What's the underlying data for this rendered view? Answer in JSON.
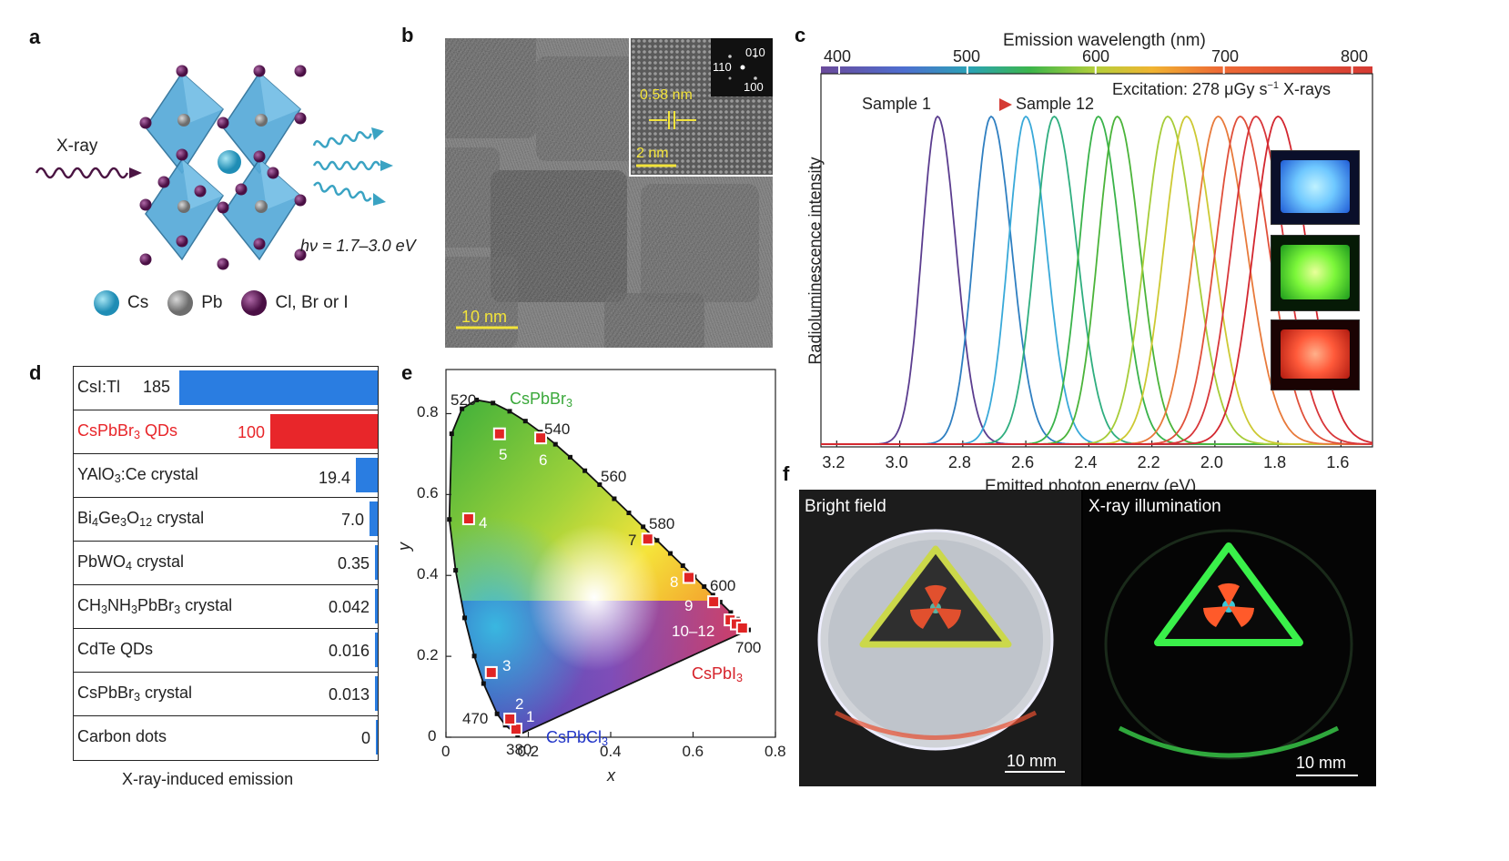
{
  "labels": {
    "a": "a",
    "b": "b",
    "c": "c",
    "d": "d",
    "e": "e",
    "f": "f"
  },
  "panel_a": {
    "xray": "X-ray",
    "hv": "hν = 1.7–3.0 eV",
    "legend": [
      {
        "name": "Cs",
        "color": "#3fa7d6"
      },
      {
        "name": "Pb",
        "color": "#8a8a8a"
      },
      {
        "name": "Cl, Br or I",
        "color": "#6b1a5e"
      }
    ]
  },
  "panel_b": {
    "scale_main": "10 nm",
    "lattice": "0.58 nm",
    "scale_inset": "2 nm",
    "fft": [
      "010",
      "110",
      "100"
    ]
  },
  "panel_c": {
    "top_label": "Emission wavelength (nm)",
    "top_ticks": [
      "400",
      "500",
      "600",
      "700",
      "800"
    ],
    "excitation": "Excitation: 278 μGy s",
    "excitation_sup": "−1",
    "excitation_tail": " X-rays",
    "sample_from": "Sample 1",
    "sample_to": "Sample 12",
    "ylabel": "Radioluminescence intensity",
    "xlabel": "Emitted photon energy (eV)",
    "xticks": [
      "3.2",
      "3.0",
      "2.8",
      "2.6",
      "2.4",
      "2.2",
      "2.0",
      "1.8",
      "1.6"
    ],
    "peak_colors": [
      "#5b3d8f",
      "#2f7fc1",
      "#39a9d9",
      "#2fae7f",
      "#39b34a",
      "#4bb43a",
      "#a6cc38",
      "#cdc933",
      "#e87a3b",
      "#e0503a",
      "#d8363a",
      "#d3272f"
    ]
  },
  "panel_d": {
    "title": "X-ray-induced emission",
    "rows": [
      {
        "name": "CsI:Tl",
        "value": "185",
        "v": 185,
        "color": "#2a7de1",
        "text_color": "#222"
      },
      {
        "name": "CsPbBr",
        "sub": "3",
        "tail": " QDs",
        "value": "100",
        "v": 100,
        "color": "#e8262a",
        "text_color": "#e8262a"
      },
      {
        "name": "YAlO",
        "sub": "3",
        "tail": ":Ce crystal",
        "value": "19.4",
        "v": 19.4,
        "color": "#2a7de1",
        "text_color": "#222"
      },
      {
        "name": "Bi",
        "sub": "4",
        "mid": "Ge",
        "sub2": "3",
        "mid2": "O",
        "sub3": "12",
        "tail": " crystal",
        "value": "7.0",
        "v": 7.0,
        "color": "#2a7de1",
        "text_color": "#222"
      },
      {
        "name": "PbWO",
        "sub": "4",
        "tail": " crystal",
        "value": "0.35",
        "v": 0.35,
        "color": "#2a7de1",
        "text_color": "#222"
      },
      {
        "name": "CH",
        "sub": "3",
        "mid": "NH",
        "sub2": "3",
        "mid2": "PbBr",
        "sub3": "3",
        "tail": " crystal",
        "value": "0.042",
        "v": 0.042,
        "color": "#2a7de1",
        "text_color": "#222"
      },
      {
        "name": "CdTe QDs",
        "value": "0.016",
        "v": 0.016,
        "color": "#2a7de1",
        "text_color": "#222"
      },
      {
        "name": "CsPbBr",
        "sub": "3",
        "tail": " crystal",
        "value": "0.013",
        "v": 0.013,
        "color": "#2a7de1",
        "text_color": "#222"
      },
      {
        "name": "Carbon dots",
        "value": "0",
        "v": 0,
        "color": "#2a7de1",
        "text_color": "#222"
      }
    ]
  },
  "panel_e": {
    "xlabel": "x",
    "ylabel": "y",
    "xticks": [
      "0",
      "0.2",
      "0.4",
      "0.6",
      "0.8"
    ],
    "yticks": [
      "0",
      "0.2",
      "0.4",
      "0.6",
      "0.8"
    ],
    "wavelengths": [
      "520",
      "540",
      "560",
      "580",
      "600",
      "700",
      "470",
      "380"
    ],
    "labels": {
      "br": "CsPbBr",
      "br_sub": "3",
      "cl": "CsPbCl",
      "cl_sub": "3",
      "i": "CsPbI",
      "i_sub": "3"
    },
    "points": [
      {
        "label": "1",
        "x": 0.17,
        "y": 0.02
      },
      {
        "label": "2",
        "x": 0.155,
        "y": 0.045
      },
      {
        "label": "3",
        "x": 0.11,
        "y": 0.16
      },
      {
        "label": "4",
        "x": 0.055,
        "y": 0.54
      },
      {
        "label": "5",
        "x": 0.13,
        "y": 0.75
      },
      {
        "label": "6",
        "x": 0.23,
        "y": 0.74
      },
      {
        "label": "7",
        "x": 0.49,
        "y": 0.49
      },
      {
        "label": "8",
        "x": 0.59,
        "y": 0.395
      },
      {
        "label": "9",
        "x": 0.65,
        "y": 0.335
      },
      {
        "label": "10–12",
        "x": 0.69,
        "y": 0.29
      },
      {
        "label": "",
        "x": 0.705,
        "y": 0.28
      },
      {
        "label": "",
        "x": 0.72,
        "y": 0.27
      }
    ]
  },
  "panel_f": {
    "left": "Bright field",
    "right": "X-ray illumination",
    "scale_left": "10 mm",
    "scale_right": "10 mm"
  }
}
